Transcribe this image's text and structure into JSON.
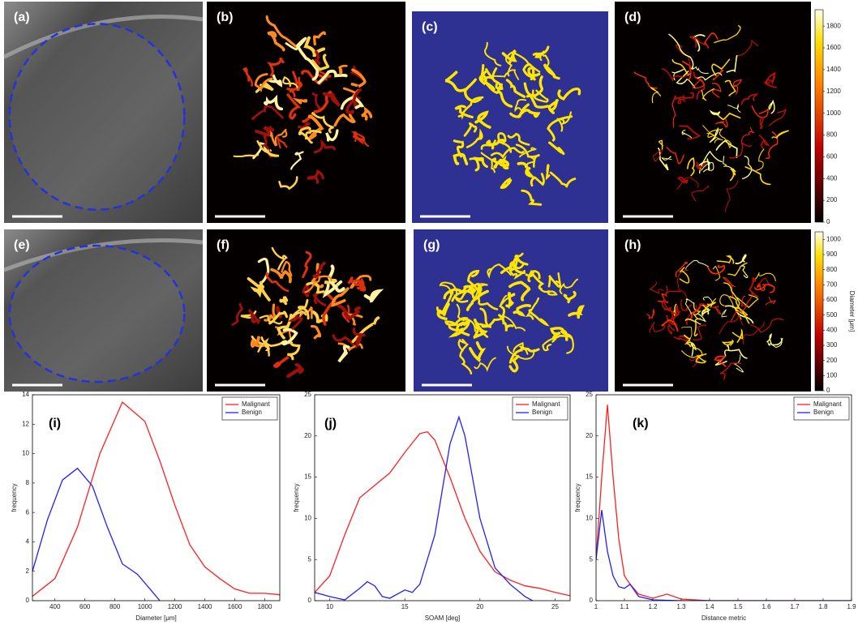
{
  "panels": [
    "(a)",
    "(b)",
    "(c)",
    "(d)",
    "(e)",
    "(f)",
    "(g)",
    "(h)"
  ],
  "colorbars": [
    {
      "lim": [
        0,
        1950
      ],
      "ticks": [
        0,
        200,
        400,
        600,
        800,
        1000,
        1200,
        1400,
        1600,
        1800
      ]
    },
    {
      "lim": [
        0,
        1050
      ],
      "ticks": [
        0,
        100,
        200,
        300,
        400,
        500,
        600,
        700,
        800,
        900,
        1000
      ],
      "label": "Diameter [μm]"
    }
  ],
  "chart_data": [
    {
      "type": "line",
      "label": "(i)",
      "xlabel": "Diameter [μm]",
      "ylabel": "frequency",
      "xlim": [
        250,
        1900
      ],
      "xticks": [
        400,
        600,
        800,
        1000,
        1200,
        1400,
        1600,
        1800
      ],
      "ylim": [
        0,
        14
      ],
      "yticks": [
        0,
        2,
        4,
        6,
        8,
        10,
        12,
        14
      ],
      "legend": "upper right",
      "series": [
        {
          "name": "Malignant",
          "color": "#ff2020",
          "x": [
            250,
            400,
            550,
            700,
            850,
            1000,
            1100,
            1200,
            1300,
            1400,
            1500,
            1600,
            1700,
            1800,
            1900
          ],
          "values": [
            0.3,
            1.5,
            5,
            10,
            13.5,
            12.2,
            9.5,
            6.5,
            3.8,
            2.3,
            1.5,
            0.8,
            0.5,
            0.5,
            0.4
          ]
        },
        {
          "name": "Benign",
          "color": "#2020ff",
          "x": [
            250,
            350,
            450,
            550,
            650,
            750,
            850,
            950,
            1050,
            1100
          ],
          "values": [
            2,
            5.5,
            8.2,
            9,
            7.8,
            5,
            2.5,
            1.8,
            0.6,
            0
          ]
        }
      ]
    },
    {
      "type": "line",
      "label": "(j)",
      "xlabel": "SOAM [deg]",
      "ylabel": "frequency",
      "xlim": [
        9,
        26
      ],
      "xticks": [
        10,
        15,
        20,
        25
      ],
      "ylim": [
        0,
        25
      ],
      "yticks": [
        0,
        5,
        10,
        15,
        20,
        25
      ],
      "legend": "upper right",
      "series": [
        {
          "name": "Malignant",
          "color": "#ff2020",
          "x": [
            9,
            10,
            11,
            12,
            13,
            14,
            15,
            16,
            16.5,
            17,
            18,
            19,
            20,
            21,
            22,
            23,
            24,
            25,
            26
          ],
          "values": [
            1,
            3,
            8,
            12.5,
            14,
            15.5,
            18,
            20.3,
            20.5,
            19.5,
            15,
            10,
            6,
            3.5,
            2.5,
            1.8,
            1.5,
            1,
            0.6
          ]
        },
        {
          "name": "Benign",
          "color": "#2020ff",
          "x": [
            9,
            10,
            11,
            12,
            12.5,
            13,
            13.5,
            14,
            15,
            15.5,
            16,
            17,
            18,
            18.6,
            19,
            20,
            21,
            22,
            23,
            23.5
          ],
          "values": [
            1,
            0.5,
            0.1,
            1.5,
            2.3,
            1.8,
            0.5,
            0.3,
            1.3,
            1,
            2,
            8,
            19,
            22.3,
            20,
            10,
            4,
            2,
            0.5,
            0
          ]
        }
      ]
    },
    {
      "type": "line",
      "label": "(k)",
      "xlabel": "Distance metric",
      "ylabel": "frequency",
      "xlim": [
        1,
        1.9
      ],
      "xticks": [
        1,
        1.1,
        1.2,
        1.3,
        1.4,
        1.5,
        1.6,
        1.7,
        1.8,
        1.9
      ],
      "ylim": [
        0,
        25
      ],
      "yticks": [
        0,
        5,
        10,
        15,
        20,
        25
      ],
      "legend": "upper right",
      "series": [
        {
          "name": "Malignant",
          "color": "#ff2020",
          "x": [
            1,
            1.02,
            1.04,
            1.06,
            1.08,
            1.1,
            1.12,
            1.15,
            1.2,
            1.25,
            1.3,
            1.4,
            1.9
          ],
          "values": [
            5,
            15,
            23.8,
            15,
            7.5,
            3,
            2,
            0.8,
            0.3,
            0.8,
            0.2,
            0,
            0
          ]
        },
        {
          "name": "Benign",
          "color": "#2020ff",
          "x": [
            1,
            1.02,
            1.04,
            1.06,
            1.08,
            1.1,
            1.12,
            1.15,
            1.2,
            1.3,
            1.9
          ],
          "values": [
            5,
            11,
            6,
            3,
            1.7,
            1.5,
            2,
            0.5,
            0.1,
            0,
            0
          ]
        }
      ]
    }
  ]
}
